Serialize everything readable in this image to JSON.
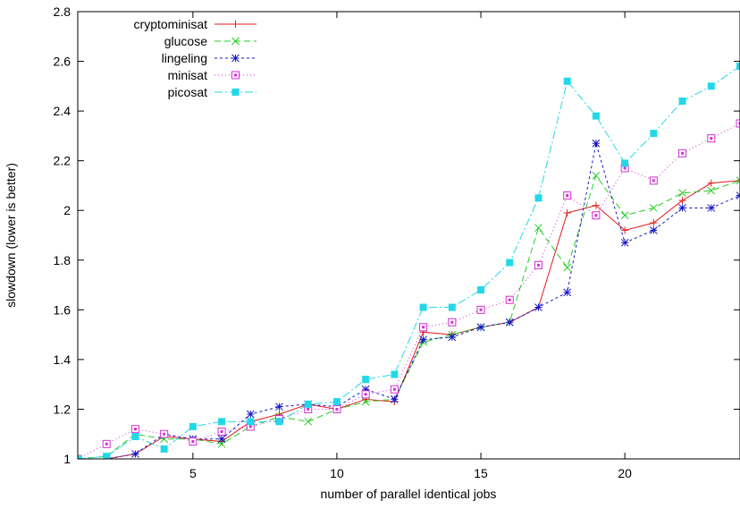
{
  "chart_data": {
    "type": "line",
    "title": "",
    "xlabel": "number of parallel identical jobs",
    "ylabel": "slowdown (lower is better)",
    "xlim": [
      1,
      24
    ],
    "ylim": [
      1,
      2.8
    ],
    "x_ticks": [
      5,
      10,
      15,
      20
    ],
    "y_ticks": [
      1,
      1.2,
      1.4,
      1.6,
      1.8,
      2,
      2.2,
      2.4,
      2.6,
      2.8
    ],
    "y_tick_labels": [
      "1",
      "1.2",
      "1.4",
      "1.6",
      "1.8",
      "2",
      "2.2",
      "2.4",
      "2.6",
      "2.8"
    ],
    "grid": false,
    "legend_position": "top-left",
    "x": [
      1,
      2,
      3,
      4,
      5,
      6,
      7,
      8,
      9,
      10,
      11,
      12,
      13,
      14,
      15,
      16,
      17,
      18,
      19,
      20,
      21,
      22,
      23,
      24
    ],
    "series": [
      {
        "name": "cryptominisat",
        "color": "#e41a1c",
        "marker": "plus",
        "dash": "",
        "values": [
          1.0,
          1.0,
          1.02,
          1.09,
          1.08,
          1.07,
          1.15,
          1.18,
          1.22,
          1.2,
          1.24,
          1.23,
          1.51,
          1.5,
          1.53,
          1.55,
          1.61,
          1.99,
          2.02,
          1.92,
          1.95,
          2.04,
          2.11,
          2.12
        ]
      },
      {
        "name": "glucose",
        "color": "#22cc22",
        "marker": "x",
        "dash": "7,4",
        "values": [
          1.0,
          1.01,
          1.1,
          1.08,
          1.08,
          1.06,
          1.13,
          1.17,
          1.15,
          1.2,
          1.23,
          1.24,
          1.47,
          1.5,
          1.53,
          1.55,
          1.93,
          1.77,
          2.14,
          1.98,
          2.01,
          2.07,
          2.08,
          2.12
        ]
      },
      {
        "name": "lingeling",
        "color": "#1515c8",
        "marker": "asterisk",
        "dash": "3,3",
        "values": [
          1.0,
          1.0,
          1.02,
          1.1,
          1.08,
          1.08,
          1.18,
          1.21,
          1.22,
          1.21,
          1.28,
          1.24,
          1.48,
          1.49,
          1.53,
          1.55,
          1.61,
          1.67,
          2.27,
          1.87,
          1.92,
          2.01,
          2.01,
          2.06
        ]
      },
      {
        "name": "minisat",
        "color": "#d330d3",
        "marker": "square-open",
        "dash": "1,3",
        "values": [
          1.0,
          1.06,
          1.12,
          1.1,
          1.07,
          1.11,
          1.13,
          1.16,
          1.2,
          1.2,
          1.26,
          1.28,
          1.53,
          1.55,
          1.6,
          1.64,
          1.78,
          2.06,
          1.98,
          2.17,
          2.12,
          2.23,
          2.29,
          2.35
        ]
      },
      {
        "name": "picosat",
        "color": "#22d8e8",
        "marker": "square-filled",
        "dash": "9,3,2,3",
        "values": [
          1.0,
          1.01,
          1.09,
          1.04,
          1.13,
          1.15,
          1.15,
          1.15,
          1.22,
          1.23,
          1.32,
          1.34,
          1.61,
          1.61,
          1.68,
          1.79,
          2.05,
          2.52,
          2.38,
          2.19,
          2.31,
          2.44,
          2.5,
          2.58
        ]
      }
    ]
  }
}
